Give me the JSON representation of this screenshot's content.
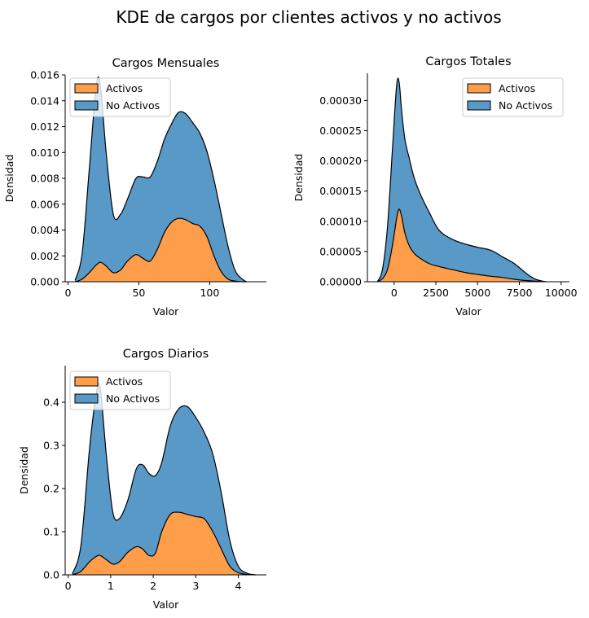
{
  "figure": {
    "title": "KDE de cargos por clientes activos y no activos"
  },
  "colors": {
    "activos": "#ff9e4a",
    "no_activos": "#5899c8",
    "outline": "#000000"
  },
  "chart_data": [
    {
      "type": "area",
      "stacked": true,
      "title": "Cargos Mensuales",
      "xlabel": "Valor",
      "ylabel": "Densidad",
      "xlim": [
        -2,
        140
      ],
      "ylim": [
        0,
        0.016
      ],
      "xticks": [
        0,
        50,
        100
      ],
      "yticks": [
        0.0,
        0.002,
        0.004,
        0.006,
        0.008,
        0.01,
        0.012,
        0.014,
        0.016
      ],
      "ytick_labels": [
        "0.000",
        "0.002",
        "0.004",
        "0.006",
        "0.008",
        "0.010",
        "0.012",
        "0.014",
        "0.016"
      ],
      "legend": {
        "position": "top-left",
        "entries": [
          "Activos",
          "No Activos"
        ]
      },
      "x": [
        5,
        10,
        15,
        20,
        23,
        27,
        32,
        37,
        42,
        48,
        53,
        58,
        63,
        68,
        73,
        78,
        83,
        88,
        93,
        98,
        103,
        108,
        113,
        118,
        123,
        126
      ],
      "series": [
        {
          "name": "Activos",
          "values": [
            0,
            0.0002,
            0.0007,
            0.0013,
            0.0015,
            0.0012,
            0.0007,
            0.0009,
            0.0016,
            0.0021,
            0.0018,
            0.0016,
            0.0025,
            0.0038,
            0.0046,
            0.0049,
            0.0048,
            0.0045,
            0.0043,
            0.0035,
            0.002,
            0.0008,
            0.0002,
            5e-05,
            0,
            0
          ]
        },
        {
          "name": "No Activos",
          "values": [
            0.0001,
            0.002,
            0.008,
            0.0139,
            0.0135,
            0.0087,
            0.0045,
            0.0043,
            0.0048,
            0.0059,
            0.0063,
            0.0065,
            0.0068,
            0.0072,
            0.0076,
            0.0082,
            0.0082,
            0.0078,
            0.0072,
            0.0066,
            0.0059,
            0.0045,
            0.0025,
            0.0008,
            0.0002,
            0
          ]
        }
      ]
    },
    {
      "type": "area",
      "stacked": true,
      "title": "Cargos Totales",
      "xlabel": "Valor",
      "ylabel": "Densidad",
      "xlim": [
        -1600,
        10500
      ],
      "ylim": [
        0,
        0.000345
      ],
      "xticks": [
        0,
        2500,
        5000,
        7500,
        10000
      ],
      "yticks": [
        0,
        5e-05,
        0.0001,
        0.00015,
        0.0002,
        0.00025,
        0.0003
      ],
      "ytick_labels": [
        "0.00000",
        "0.00005",
        "0.00010",
        "0.00015",
        "0.00020",
        "0.00025",
        "0.00030"
      ],
      "legend": {
        "position": "top-right",
        "entries": [
          "Activos",
          "No Activos"
        ]
      },
      "x": [
        -1000,
        -700,
        -400,
        -100,
        150,
        300,
        450,
        650,
        900,
        1200,
        1600,
        2100,
        2700,
        3500,
        4300,
        5000,
        5800,
        6500,
        7200,
        7900,
        8400,
        8800,
        9100
      ],
      "series": [
        {
          "name": "Activos",
          "values": [
            0,
            5e-06,
            2e-05,
            6e-05,
            0.000105,
            0.00012,
            0.000108,
            8e-05,
            6e-05,
            4.7e-05,
            3.8e-05,
            3e-05,
            2.5e-05,
            2e-05,
            1.5e-05,
            1.2e-05,
            9e-06,
            7e-06,
            4e-06,
            2e-06,
            1e-06,
            5e-07,
            0
          ]
        },
        {
          "name": "No Activos",
          "values": [
            0,
            1.5e-05,
            7e-05,
            0.00016,
            0.00022,
            0.00021,
            0.000175,
            0.000155,
            0.000145,
            0.000125,
            0.000105,
            8.5e-05,
            6e-05,
            5e-05,
            4.7e-05,
            4.5e-05,
            4.3e-05,
            3.4e-05,
            2.6e-05,
            1.2e-05,
            4e-06,
            1e-06,
            0
          ]
        }
      ]
    },
    {
      "type": "area",
      "stacked": true,
      "title": "Cargos Diarios",
      "xlabel": "Valor",
      "ylabel": "Densidad",
      "xlim": [
        -0.07,
        4.66
      ],
      "ylim": [
        0,
        0.485
      ],
      "xticks": [
        0,
        1,
        2,
        3,
        4
      ],
      "yticks": [
        0,
        0.1,
        0.2,
        0.3,
        0.4
      ],
      "ytick_labels": [
        "0.0",
        "0.1",
        "0.2",
        "0.3",
        "0.4"
      ],
      "legend": {
        "position": "top-left",
        "entries": [
          "Activos",
          "No Activos"
        ]
      },
      "x": [
        0.1,
        0.3,
        0.5,
        0.65,
        0.75,
        0.9,
        1.05,
        1.2,
        1.4,
        1.6,
        1.75,
        1.9,
        2.05,
        2.2,
        2.4,
        2.6,
        2.8,
        3.0,
        3.2,
        3.4,
        3.6,
        3.8,
        4.0,
        4.2,
        4.4
      ],
      "series": [
        {
          "name": "Activos",
          "values": [
            0,
            0.008,
            0.03,
            0.042,
            0.045,
            0.035,
            0.025,
            0.03,
            0.052,
            0.065,
            0.06,
            0.045,
            0.05,
            0.1,
            0.14,
            0.145,
            0.14,
            0.135,
            0.13,
            0.1,
            0.06,
            0.02,
            0.005,
            0.001,
            0
          ]
        },
        {
          "name": "No Activos",
          "values": [
            0.002,
            0.06,
            0.26,
            0.37,
            0.39,
            0.24,
            0.12,
            0.1,
            0.12,
            0.18,
            0.195,
            0.19,
            0.18,
            0.16,
            0.205,
            0.24,
            0.25,
            0.23,
            0.2,
            0.18,
            0.13,
            0.06,
            0.015,
            0.003,
            0
          ]
        }
      ]
    }
  ]
}
